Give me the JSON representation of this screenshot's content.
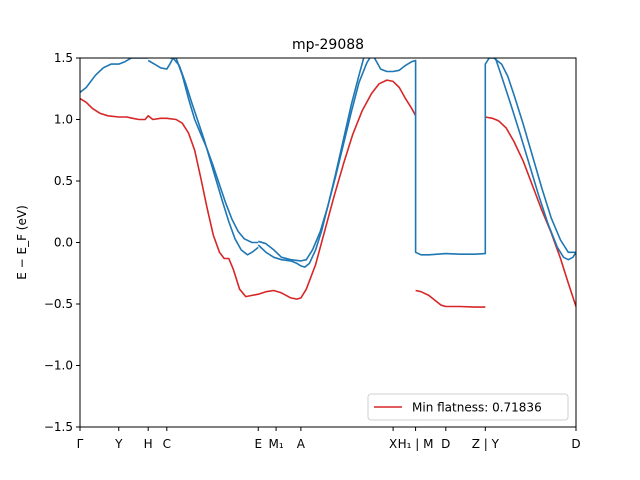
{
  "chart_data": {
    "type": "line",
    "title": "mp-29088",
    "ylabel": "E − E_F (eV)",
    "xlabel": "",
    "ylim": [
      -1.5,
      1.5
    ],
    "xlim": [
      0,
      3.2
    ],
    "yticks": [
      -1.5,
      -1.0,
      -0.5,
      0.0,
      0.5,
      1.0,
      1.5
    ],
    "ytick_labels": [
      "−1.5",
      "−1.0",
      "−0.5",
      "0.0",
      "0.5",
      "1.0",
      "1.5"
    ],
    "xticks": [
      {
        "x": 0.0,
        "label": "Γ"
      },
      {
        "x": 0.25,
        "label": "Y"
      },
      {
        "x": 0.44,
        "label": "H"
      },
      {
        "x": 0.56,
        "label": "C"
      },
      {
        "x": 1.15,
        "label": "E"
      },
      {
        "x": 1.265,
        "label": "M₁"
      },
      {
        "x": 1.425,
        "label": "A"
      },
      {
        "x": 2.02,
        "label": "X"
      },
      {
        "x": 2.165,
        "label": "H₁ | M"
      },
      {
        "x": 2.36,
        "label": "D"
      },
      {
        "x": 2.615,
        "label": "Z | Y"
      },
      {
        "x": 3.2,
        "label": "D"
      }
    ],
    "grid": false,
    "legend": {
      "position": "lower-right",
      "entries": [
        {
          "label": "Min flatness: 0.71836",
          "color": "#d62728"
        }
      ]
    },
    "series": [
      {
        "color": "#d62728",
        "segments": [
          [
            [
              0.0,
              1.17
            ],
            [
              0.04,
              1.14
            ],
            [
              0.08,
              1.09
            ],
            [
              0.13,
              1.05
            ],
            [
              0.18,
              1.03
            ],
            [
              0.25,
              1.02
            ],
            [
              0.3,
              1.02
            ],
            [
              0.34,
              1.01
            ],
            [
              0.38,
              1.0
            ],
            [
              0.42,
              1.0
            ],
            [
              0.44,
              1.03
            ],
            [
              0.47,
              1.0
            ],
            [
              0.52,
              1.01
            ],
            [
              0.56,
              1.01
            ],
            [
              0.62,
              1.0
            ],
            [
              0.66,
              0.97
            ],
            [
              0.7,
              0.89
            ],
            [
              0.74,
              0.75
            ],
            [
              0.78,
              0.52
            ],
            [
              0.82,
              0.28
            ],
            [
              0.86,
              0.06
            ],
            [
              0.9,
              -0.08
            ],
            [
              0.93,
              -0.13
            ],
            [
              0.96,
              -0.13
            ],
            [
              0.99,
              -0.22
            ],
            [
              1.03,
              -0.38
            ],
            [
              1.07,
              -0.44
            ],
            [
              1.11,
              -0.43
            ],
            [
              1.15,
              -0.42
            ],
            [
              1.2,
              -0.4
            ],
            [
              1.25,
              -0.39
            ],
            [
              1.3,
              -0.41
            ],
            [
              1.36,
              -0.45
            ],
            [
              1.4,
              -0.46
            ],
            [
              1.425,
              -0.45
            ],
            [
              1.46,
              -0.38
            ],
            [
              1.52,
              -0.18
            ],
            [
              1.58,
              0.1
            ],
            [
              1.64,
              0.38
            ],
            [
              1.7,
              0.64
            ],
            [
              1.76,
              0.88
            ],
            [
              1.82,
              1.07
            ],
            [
              1.88,
              1.21
            ],
            [
              1.93,
              1.29
            ],
            [
              1.98,
              1.32
            ],
            [
              2.02,
              1.31
            ],
            [
              2.06,
              1.26
            ],
            [
              2.1,
              1.17
            ],
            [
              2.14,
              1.09
            ],
            [
              2.165,
              1.03
            ]
          ],
          [
            [
              2.165,
              -0.39
            ],
            [
              2.2,
              -0.4
            ],
            [
              2.25,
              -0.43
            ],
            [
              2.29,
              -0.47
            ],
            [
              2.33,
              -0.51
            ],
            [
              2.36,
              -0.52
            ],
            [
              2.45,
              -0.52
            ],
            [
              2.55,
              -0.525
            ],
            [
              2.615,
              -0.525
            ]
          ],
          [
            [
              2.615,
              1.02
            ],
            [
              2.66,
              1.01
            ],
            [
              2.7,
              0.99
            ],
            [
              2.75,
              0.93
            ],
            [
              2.8,
              0.82
            ],
            [
              2.86,
              0.66
            ],
            [
              2.92,
              0.46
            ],
            [
              2.98,
              0.26
            ],
            [
              3.04,
              0.08
            ],
            [
              3.1,
              -0.13
            ],
            [
              3.15,
              -0.33
            ],
            [
              3.2,
              -0.52
            ]
          ]
        ]
      },
      {
        "color": "#1f77b4",
        "segments": [
          [
            [
              0.0,
              1.22
            ],
            [
              0.04,
              1.26
            ],
            [
              0.1,
              1.36
            ],
            [
              0.15,
              1.42
            ],
            [
              0.2,
              1.45
            ],
            [
              0.25,
              1.45
            ],
            [
              0.29,
              1.47
            ],
            [
              0.33,
              1.5
            ],
            [
              0.4,
              1.5
            ],
            [
              0.44,
              1.5
            ]
          ],
          [
            [
              0.44,
              1.48
            ],
            [
              0.48,
              1.45
            ],
            [
              0.52,
              1.42
            ],
            [
              0.56,
              1.41
            ],
            [
              0.58,
              1.45
            ],
            [
              0.6,
              1.5
            ]
          ],
          [
            [
              0.6,
              1.5
            ],
            [
              0.64,
              1.44
            ],
            [
              0.68,
              1.3
            ],
            [
              0.72,
              1.14
            ],
            [
              0.76,
              0.99
            ],
            [
              0.8,
              0.84
            ],
            [
              0.84,
              0.67
            ],
            [
              0.88,
              0.5
            ],
            [
              0.92,
              0.33
            ],
            [
              0.96,
              0.17
            ],
            [
              1.0,
              0.03
            ],
            [
              1.04,
              -0.06
            ],
            [
              1.08,
              -0.1
            ],
            [
              1.11,
              -0.08
            ],
            [
              1.15,
              -0.04
            ]
          ],
          [
            [
              1.15,
              0.01
            ],
            [
              1.2,
              -0.01
            ],
            [
              1.25,
              -0.06
            ],
            [
              1.3,
              -0.12
            ],
            [
              1.36,
              -0.14
            ],
            [
              1.425,
              -0.15
            ],
            [
              1.46,
              -0.14
            ],
            [
              1.5,
              -0.06
            ],
            [
              1.55,
              0.09
            ],
            [
              1.6,
              0.3
            ],
            [
              1.65,
              0.54
            ],
            [
              1.7,
              0.8
            ],
            [
              1.75,
              1.06
            ],
            [
              1.8,
              1.3
            ],
            [
              1.85,
              1.46
            ],
            [
              1.87,
              1.5
            ]
          ],
          [
            [
              1.9,
              1.5
            ],
            [
              1.94,
              1.41
            ],
            [
              1.98,
              1.39
            ],
            [
              2.02,
              1.39
            ],
            [
              2.06,
              1.4
            ],
            [
              2.1,
              1.44
            ],
            [
              2.14,
              1.47
            ],
            [
              2.165,
              1.48
            ],
            [
              2.165,
              -0.08
            ],
            [
              2.2,
              -0.1
            ],
            [
              2.25,
              -0.1
            ],
            [
              2.36,
              -0.09
            ],
            [
              2.45,
              -0.095
            ],
            [
              2.55,
              -0.095
            ],
            [
              2.615,
              -0.09
            ],
            [
              2.615,
              1.45
            ],
            [
              2.63,
              1.48
            ],
            [
              2.64,
              1.5
            ]
          ],
          [
            [
              2.63,
              1.5
            ],
            [
              2.68,
              1.5
            ],
            [
              2.72,
              1.35
            ],
            [
              2.78,
              1.12
            ],
            [
              2.84,
              0.88
            ],
            [
              2.9,
              0.63
            ],
            [
              2.96,
              0.38
            ],
            [
              3.02,
              0.15
            ],
            [
              3.08,
              -0.04
            ],
            [
              3.12,
              -0.12
            ],
            [
              3.15,
              -0.14
            ],
            [
              3.18,
              -0.12
            ],
            [
              3.2,
              -0.08
            ]
          ]
        ]
      },
      {
        "color": "#1f77b4",
        "segments": [
          [
            [
              0.58,
              1.5
            ],
            [
              0.62,
              1.5
            ],
            [
              0.66,
              1.36
            ],
            [
              0.7,
              1.17
            ],
            [
              0.74,
              1.0
            ],
            [
              0.78,
              0.88
            ],
            [
              0.82,
              0.76
            ],
            [
              0.86,
              0.62
            ],
            [
              0.9,
              0.47
            ],
            [
              0.94,
              0.32
            ],
            [
              0.98,
              0.19
            ],
            [
              1.02,
              0.09
            ],
            [
              1.06,
              0.03
            ],
            [
              1.11,
              0.0
            ],
            [
              1.15,
              0.0
            ]
          ],
          [
            [
              1.15,
              -0.02
            ],
            [
              1.2,
              -0.08
            ],
            [
              1.25,
              -0.12
            ],
            [
              1.3,
              -0.14
            ],
            [
              1.36,
              -0.15
            ],
            [
              1.4,
              -0.17
            ],
            [
              1.425,
              -0.19
            ],
            [
              1.45,
              -0.2
            ],
            [
              1.48,
              -0.17
            ],
            [
              1.52,
              -0.06
            ],
            [
              1.56,
              0.1
            ],
            [
              1.6,
              0.3
            ],
            [
              1.65,
              0.56
            ],
            [
              1.7,
              0.84
            ],
            [
              1.75,
              1.12
            ],
            [
              1.8,
              1.36
            ],
            [
              1.83,
              1.5
            ]
          ],
          [
            [
              2.67,
              1.5
            ],
            [
              2.72,
              1.45
            ],
            [
              2.76,
              1.35
            ],
            [
              2.8,
              1.2
            ],
            [
              2.86,
              0.96
            ],
            [
              2.92,
              0.7
            ],
            [
              2.98,
              0.44
            ],
            [
              3.04,
              0.2
            ],
            [
              3.1,
              0.02
            ],
            [
              3.15,
              -0.08
            ],
            [
              3.2,
              -0.08
            ]
          ]
        ]
      }
    ]
  }
}
